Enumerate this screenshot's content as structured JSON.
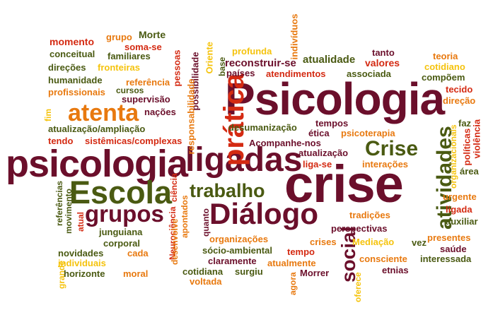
{
  "words": {
    "psicologia_cap": "Psicologia",
    "crise": "crise",
    "psicologia": "psicologia",
    "ligadas": "ligadas",
    "escola": "Escola",
    "dialogo": "Diálogo",
    "atenta": "atenta",
    "grupos": "grupos",
    "trabalho": "trabalho",
    "pratica": "prática",
    "crise_cap": "Crise",
    "atividades": "atividades",
    "social": "social",
    "momento": "momento",
    "grupo": "grupo",
    "morte": "Morte",
    "soma_se": "soma-se",
    "conceitual": "conceitual",
    "familiares": "familiares",
    "direcoes": "direções",
    "fronteiras": "fronteiras",
    "humanidade": "humanidade",
    "referencia": "referência",
    "profissionais": "profissionais",
    "cursos": "cursos",
    "supervisao": "supervisão",
    "nacoes": "nações",
    "fim": "fim",
    "atualizacao_ampliacao": "atualização/ampliação",
    "tendo": "tendo",
    "sistemicas": "sistêmicas/complexas",
    "pessoas": "pessoas",
    "possibilidade": "possibilidade",
    "oriente": "Oriente",
    "base": "base",
    "responsabilidade": "responsabilidade",
    "profunda": "profunda",
    "individuos": "indivíduos",
    "reconstruir_se": "reconstruir-se",
    "paises": "países",
    "atualidade": "atualidade",
    "tanto": "tanto",
    "valores": "valores",
    "atendimentos": "atendimentos",
    "associada": "associada",
    "teoria": "teoria",
    "cotidiano": "cotidiano",
    "compoem": "compõem",
    "tecido": "tecido",
    "direcao": "direção",
    "desumanizacao": "desumanização",
    "tempos": "tempos",
    "etica": "ética",
    "acompanhe": "Acompanhe-nos",
    "psicoterapia": "psicoterapia",
    "atualizacao": "atualização",
    "liga_se": "liga-se",
    "interacoes": "interações",
    "organizacionais": "organizacionais",
    "faz": "faz",
    "politicas": "políticas",
    "violencia": "violência",
    "area": "área",
    "urgente": "urgente",
    "ligada": "ligada",
    "auxiliar": "auxiliar",
    "ciencia": "ciência",
    "apontados": "apontados",
    "neurociencia": "Neurociência",
    "desenvolve": "desenvolve",
    "quanto": "quanto",
    "referencias": "referências",
    "movimento": "movimento",
    "atual": "atual",
    "junguiana": "junguiana",
    "corporal": "corporal",
    "novidades": "novidades",
    "cada": "cada",
    "individuais": "individuais",
    "horizonte": "horizonte",
    "moral": "moral",
    "grande": "grande",
    "cotidiana": "cotidiana",
    "surgiu": "surgiu",
    "voltada": "voltada",
    "organizacoes": "organizações",
    "socio_ambiental": "sócio-ambiental",
    "claramente": "claramente",
    "crises": "crises",
    "tempo": "tempo",
    "atualmente": "atualmente",
    "agora": "agora",
    "morrer": "Morrer",
    "tradicoes": "tradições",
    "perspectivas": "perspectivas",
    "mediacao": "Mediação",
    "vez": "vez",
    "presentes": "presentes",
    "saude": "saúde",
    "consciente": "consciente",
    "interessada": "interessada",
    "etnias": "etnias",
    "oferece": "oferece"
  }
}
